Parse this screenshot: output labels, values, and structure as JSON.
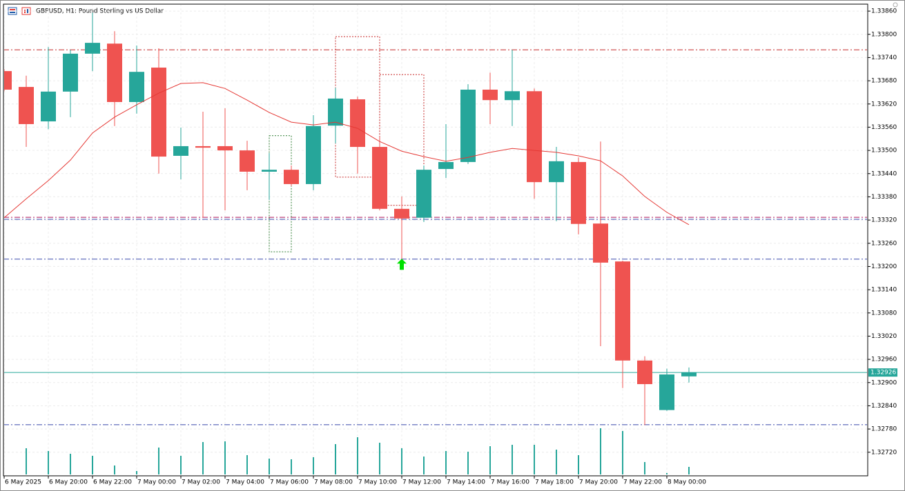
{
  "chart_data": {
    "type": "candlestick",
    "title": "GBPUSD, H1:  Pound Sterling vs US Dollar",
    "categories": [
      "6 May 2025",
      null,
      "6 May 20:00",
      null,
      "6 May 22:00",
      null,
      "7 May 00:00",
      null,
      "7 May 02:00",
      null,
      "7 May 04:00",
      null,
      "7 May 06:00",
      null,
      "7 May 08:00",
      null,
      "7 May 10:00",
      null,
      "7 May 12:00",
      null,
      "7 May 14:00",
      null,
      "7 May 16:00",
      null,
      "7 May 18:00",
      null,
      "7 May 20:00",
      null,
      "7 May 22:00",
      null,
      "8 May 00:00",
      null
    ],
    "open": [
      1.33705,
      1.33664,
      1.33575,
      1.33652,
      1.3375,
      1.33776,
      1.33625,
      1.33714,
      1.33486,
      1.33511,
      1.33511,
      1.335,
      1.33445,
      1.3345,
      1.33413,
      1.33564,
      1.33632,
      1.33509,
      1.33349,
      1.33326,
      1.33452,
      1.3347,
      1.33657,
      1.3363,
      1.33653,
      1.33418,
      1.3347,
      1.33311,
      1.33213,
      1.32957,
      1.32829,
      1.32916
    ],
    "high": [
      1.3371,
      1.33693,
      1.33767,
      1.3376,
      1.33856,
      1.33808,
      1.33771,
      1.33764,
      1.33559,
      1.336,
      1.33609,
      1.33525,
      1.33493,
      1.33461,
      1.33591,
      1.33662,
      1.33639,
      1.33536,
      1.33381,
      1.33461,
      1.33568,
      1.33671,
      1.33701,
      1.3376,
      1.3366,
      1.33509,
      1.33482,
      1.33523,
      1.33215,
      1.32968,
      1.32936,
      1.32939
    ],
    "low": [
      1.33653,
      1.33509,
      1.33555,
      1.33586,
      1.33705,
      1.33563,
      1.33595,
      1.3344,
      1.33425,
      1.33326,
      1.33345,
      1.33397,
      1.33372,
      1.33408,
      1.33397,
      1.33518,
      1.3344,
      1.33345,
      1.3322,
      1.33315,
      1.33429,
      1.33465,
      1.33568,
      1.33563,
      1.33375,
      1.33317,
      1.33283,
      1.32994,
      1.32886,
      1.3279,
      1.32827,
      1.329
    ],
    "close": [
      1.33657,
      1.33568,
      1.33652,
      1.3375,
      1.33778,
      1.33625,
      1.33703,
      1.33484,
      1.33511,
      1.33507,
      1.335,
      1.33445,
      1.3345,
      1.33413,
      1.33563,
      1.33634,
      1.33509,
      1.33349,
      1.33324,
      1.3345,
      1.3347,
      1.33657,
      1.3363,
      1.33653,
      1.33418,
      1.33472,
      1.3331,
      1.3321,
      1.32957,
      1.32896,
      1.32921,
      1.32926
    ],
    "ma": [
      1.33326,
      1.33375,
      1.33422,
      1.33475,
      1.33545,
      1.33586,
      1.33618,
      1.33648,
      1.33673,
      1.33675,
      1.3366,
      1.3363,
      1.33598,
      1.33573,
      1.33566,
      1.33573,
      1.33557,
      1.33523,
      1.33498,
      1.33484,
      1.33472,
      1.33482,
      1.33495,
      1.33505,
      1.335,
      1.33495,
      1.33486,
      1.33473,
      1.33434,
      1.33381,
      1.3334,
      1.33308
    ],
    "ma_color": "#e53935",
    "volumes": [
      null,
      38,
      34,
      30,
      27,
      13,
      5,
      39,
      27,
      47,
      48,
      28,
      23,
      22,
      25,
      44,
      54,
      46,
      38,
      26,
      34,
      33,
      41,
      43,
      43,
      36,
      28,
      67,
      63,
      18,
      2,
      11
    ],
    "volume_color": "#26a69a",
    "up_color": "#26a69a",
    "down_color": "#ef5350",
    "ylim": [
      1.32659,
      1.33878
    ],
    "yticks": [
      {
        "value": 1.3386,
        "label": "1.33860"
      },
      {
        "value": 1.338,
        "label": "1.33800"
      },
      {
        "value": 1.3374,
        "label": "1.33740"
      },
      {
        "value": 1.3368,
        "label": "1.33680"
      },
      {
        "value": 1.3362,
        "label": "1.33620"
      },
      {
        "value": 1.3356,
        "label": "1.33560"
      },
      {
        "value": 1.335,
        "label": "1.33500"
      },
      {
        "value": 1.3344,
        "label": "1.33440"
      },
      {
        "value": 1.3338,
        "label": "1.33380"
      },
      {
        "value": 1.3332,
        "label": "1.33320"
      },
      {
        "value": 1.3326,
        "label": "1.33260"
      },
      {
        "value": 1.332,
        "label": "1.33200"
      },
      {
        "value": 1.3314,
        "label": "1.33140"
      },
      {
        "value": 1.3308,
        "label": "1.33080"
      },
      {
        "value": 1.3302,
        "label": "1.33020"
      },
      {
        "value": 1.3296,
        "label": "1.32960"
      },
      {
        "value": 1.329,
        "label": "1.32900"
      },
      {
        "value": 1.3284,
        "label": "1.32840"
      },
      {
        "value": 1.3278,
        "label": "1.32780"
      },
      {
        "value": 1.3272,
        "label": "1.32720"
      }
    ],
    "grid": true,
    "levels": [
      {
        "value": 1.3376,
        "color": "#c62828"
      },
      {
        "value": 1.33327,
        "color": "#ad1457"
      },
      {
        "value": 1.33322,
        "color": "#3949ab"
      },
      {
        "value": 1.33219,
        "color": "#3949ab"
      },
      {
        "value": 1.32791,
        "color": "#3949ab"
      }
    ],
    "zones": [
      {
        "start": 12,
        "end": 13,
        "top": 1.33538,
        "bottom": 1.33238,
        "color": "#2e7d32"
      },
      {
        "start": 15,
        "end": 17,
        "top": 1.33794,
        "bottom": 1.33431,
        "color": "#c62828"
      },
      {
        "start": 17,
        "end": 19,
        "top": 1.33696,
        "bottom": 1.33358,
        "color": "#c62828"
      }
    ],
    "signal": {
      "index": 18,
      "value": 1.3322,
      "color": "#00e000"
    },
    "last_price": 1.32926,
    "last_price_color": "#26a69a"
  }
}
